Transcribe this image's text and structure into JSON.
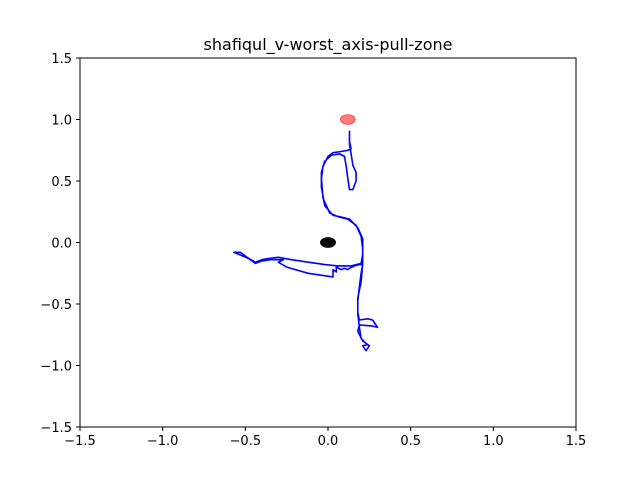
{
  "chart_data": {
    "type": "line",
    "title": "shafiqul_v-worst_axis-pull-zone",
    "xlabel": "",
    "ylabel": "",
    "xlim": [
      -1.5,
      1.5
    ],
    "ylim": [
      -1.5,
      1.5
    ],
    "xticks": [
      -1.5,
      -1.0,
      -0.5,
      0.0,
      0.5,
      1.0,
      1.5
    ],
    "xtick_labels": [
      "−1.5",
      "−1.0",
      "−0.5",
      "0.0",
      "0.5",
      "1.0",
      "1.5"
    ],
    "yticks": [
      -1.5,
      -1.0,
      -0.5,
      0.0,
      0.5,
      1.0,
      1.5
    ],
    "ytick_labels": [
      "−1.5",
      "−1.0",
      "−0.5",
      "0.0",
      "0.5",
      "1.0",
      "1.5"
    ],
    "grid": false,
    "legend": "none",
    "series": [
      {
        "kind": "path",
        "color": "#0000ff",
        "points": [
          [
            0.13,
            0.91
          ],
          [
            0.13,
            0.82
          ],
          [
            0.14,
            0.76
          ],
          [
            0.12,
            0.75
          ],
          [
            0.08,
            0.74
          ],
          [
            0.03,
            0.73
          ],
          [
            0.0,
            0.7
          ],
          [
            -0.03,
            0.62
          ],
          [
            -0.04,
            0.52
          ],
          [
            -0.03,
            0.36
          ],
          [
            0.01,
            0.24
          ],
          [
            0.06,
            0.21
          ],
          [
            0.12,
            0.19
          ],
          [
            0.17,
            0.14
          ],
          [
            0.2,
            0.05
          ],
          [
            0.21,
            -0.05
          ],
          [
            0.21,
            -0.17
          ],
          [
            0.2,
            -0.32
          ],
          [
            0.18,
            -0.45
          ],
          [
            0.18,
            -0.57
          ],
          [
            0.19,
            -0.63
          ],
          [
            0.24,
            -0.62
          ],
          [
            0.27,
            -0.63
          ],
          [
            0.3,
            -0.69
          ],
          [
            0.27,
            -0.68
          ],
          [
            0.19,
            -0.67
          ],
          [
            0.18,
            -0.72
          ],
          [
            0.21,
            -0.8
          ],
          [
            0.24,
            -0.83
          ],
          [
            0.21,
            -0.84
          ],
          [
            0.23,
            -0.88
          ],
          [
            0.25,
            -0.84
          ],
          [
            0.23,
            -0.82
          ],
          [
            0.2,
            -0.78
          ],
          [
            0.19,
            -0.69
          ],
          [
            0.18,
            -0.58
          ],
          [
            0.18,
            -0.47
          ],
          [
            0.19,
            -0.36
          ],
          [
            0.2,
            -0.25
          ],
          [
            0.21,
            -0.18
          ],
          [
            0.19,
            -0.18
          ],
          [
            0.16,
            -0.19
          ],
          [
            0.13,
            -0.21
          ],
          [
            0.12,
            -0.22
          ],
          [
            0.1,
            -0.21
          ],
          [
            0.08,
            -0.22
          ],
          [
            0.05,
            -0.2
          ],
          [
            0.05,
            -0.24
          ],
          [
            0.03,
            -0.22
          ],
          [
            0.03,
            -0.28
          ],
          [
            -0.12,
            -0.25
          ],
          [
            -0.25,
            -0.2
          ],
          [
            -0.3,
            -0.16
          ],
          [
            -0.27,
            -0.14
          ],
          [
            -0.35,
            -0.14
          ],
          [
            -0.4,
            -0.15
          ],
          [
            -0.44,
            -0.17
          ],
          [
            -0.48,
            -0.13
          ],
          [
            -0.55,
            -0.09
          ],
          [
            -0.57,
            -0.08
          ],
          [
            -0.53,
            -0.08
          ],
          [
            -0.49,
            -0.12
          ],
          [
            -0.44,
            -0.16
          ],
          [
            -0.4,
            -0.14
          ],
          [
            -0.36,
            -0.13
          ],
          [
            -0.3,
            -0.12
          ],
          [
            -0.22,
            -0.14
          ],
          [
            -0.12,
            -0.16
          ],
          [
            -0.02,
            -0.18
          ],
          [
            0.06,
            -0.19
          ],
          [
            0.14,
            -0.19
          ],
          [
            0.2,
            -0.17
          ],
          [
            0.21,
            -0.1
          ],
          [
            0.21,
            0.03
          ],
          [
            0.18,
            0.12
          ],
          [
            0.13,
            0.19
          ],
          [
            0.07,
            0.21
          ],
          [
            0.03,
            0.22
          ],
          [
            -0.02,
            0.3
          ],
          [
            -0.04,
            0.45
          ],
          [
            -0.04,
            0.57
          ],
          [
            -0.02,
            0.66
          ],
          [
            0.02,
            0.71
          ],
          [
            0.07,
            0.72
          ],
          [
            0.1,
            0.7
          ],
          [
            0.11,
            0.62
          ],
          [
            0.12,
            0.52
          ],
          [
            0.13,
            0.43
          ],
          [
            0.15,
            0.43
          ],
          [
            0.17,
            0.5
          ],
          [
            0.17,
            0.57
          ],
          [
            0.15,
            0.63
          ],
          [
            0.14,
            0.72
          ],
          [
            0.13,
            0.8
          ],
          [
            0.13,
            0.91
          ]
        ]
      }
    ],
    "markers": [
      {
        "kind": "ellipse",
        "x": 0.0,
        "y": 0.0,
        "rx": 0.045,
        "ry": 0.04,
        "color": "#000000",
        "opacity": 1
      },
      {
        "kind": "ellipse",
        "x": 0.12,
        "y": 1.0,
        "rx": 0.045,
        "ry": 0.04,
        "color": "#ff0000",
        "opacity": 0.5
      }
    ]
  }
}
